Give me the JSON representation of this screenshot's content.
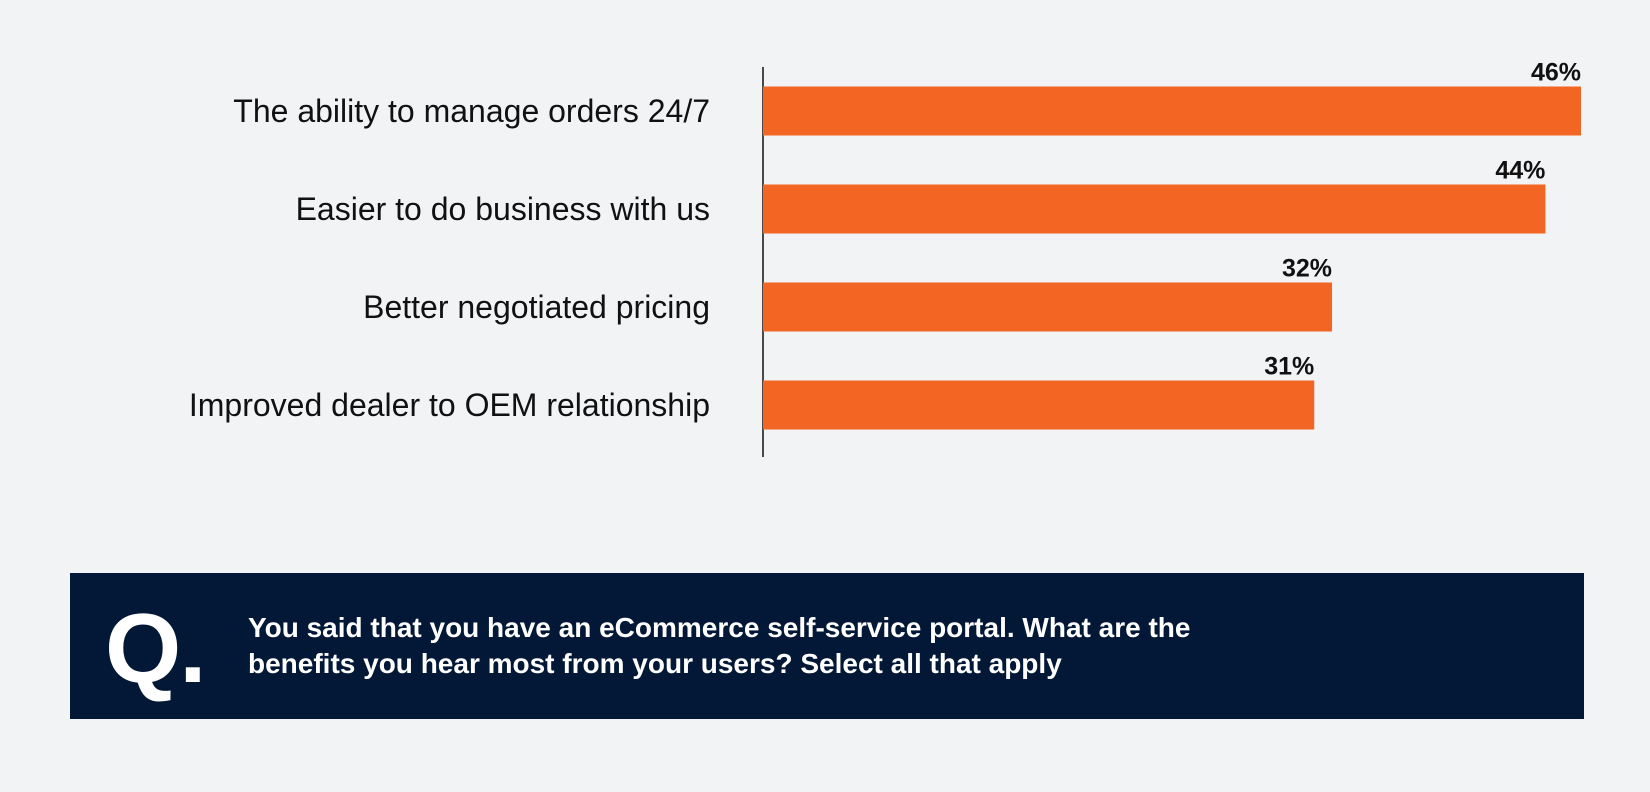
{
  "chart_data": {
    "type": "bar",
    "orientation": "horizontal",
    "categories": [
      "The ability to manage orders 24/7",
      "Easier to do business with us",
      "Better negotiated pricing",
      "Improved dealer to OEM relationship"
    ],
    "values": [
      46,
      44,
      32,
      31
    ],
    "value_labels": [
      "46%",
      "44%",
      "32%",
      "31%"
    ],
    "unit": "%",
    "xlim": [
      0,
      46
    ],
    "grid": false,
    "legend": "none",
    "bar_color": "#f26522"
  },
  "question": {
    "mark": "Q.",
    "text": "You said that you have an eCommerce self-service portal. What are the benefits you hear most from your users? Select all that apply"
  },
  "colors": {
    "background": "#f2f3f5",
    "question_background": "#031836",
    "text": "#111111"
  }
}
